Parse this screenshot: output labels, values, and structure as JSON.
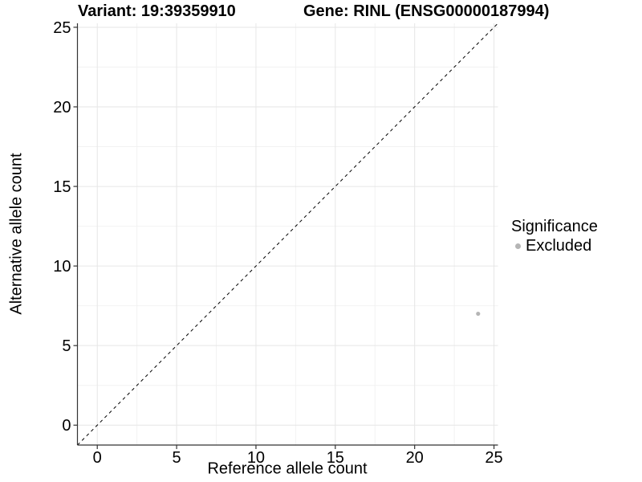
{
  "chart_data": {
    "type": "scatter",
    "title_left": "Variant: 19:39359910",
    "title_right": "Gene: RINL (ENSG00000187994)",
    "xlabel": "Reference allele count",
    "ylabel": "Alternative allele count",
    "xlim": [
      -1.25,
      25.25
    ],
    "ylim": [
      -1.25,
      25.25
    ],
    "x_ticks": [
      0,
      5,
      10,
      15,
      20,
      25
    ],
    "y_ticks": [
      0,
      5,
      10,
      15,
      20,
      25
    ],
    "minor_ticks": [
      2.5,
      7.5,
      12.5,
      17.5,
      22.5
    ],
    "points": [
      {
        "x": 24,
        "y": 7,
        "significance": "Excluded",
        "color": "#b5b5b5",
        "radius": 2.6
      }
    ],
    "abline": {
      "slope": 1,
      "intercept": 0,
      "style": "dashed",
      "color": "#000000"
    },
    "legend": {
      "position": "right",
      "title": "Significance",
      "items": [
        {
          "label": "Excluded",
          "color": "#b5b5b5"
        }
      ]
    },
    "grid": {
      "major": "#e6e6e6",
      "minor": "#f2f2f2",
      "background": "#ffffff"
    },
    "axis_color": "#333333"
  }
}
